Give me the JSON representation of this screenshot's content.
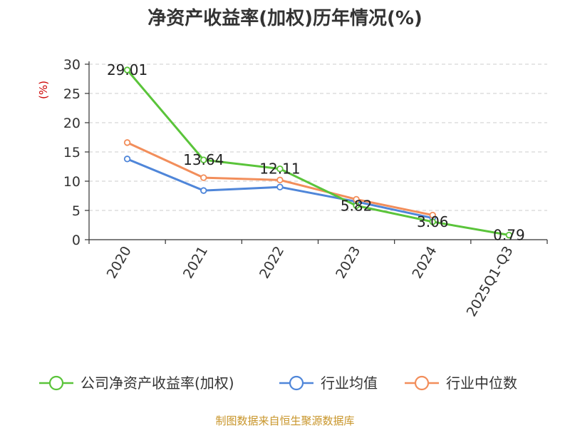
{
  "chart_data": {
    "type": "line",
    "title": "净资产收益率(加权)历年情况(%)",
    "ylabel": "(%)",
    "xlabel": "",
    "categories": [
      "2020",
      "2021",
      "2022",
      "2023",
      "2024",
      "2025Q1-Q3"
    ],
    "ylim": [
      0,
      30
    ],
    "yticks": [
      0,
      5,
      10,
      15,
      20,
      25,
      30
    ],
    "grid": true,
    "legend_position": "bottom",
    "series": [
      {
        "name": "公司净资产收益率(加权)",
        "color": "#5ac43a",
        "values": [
          29.01,
          13.64,
          12.11,
          5.82,
          3.06,
          0.79
        ],
        "labels": [
          "29.01",
          "13.64",
          "12.11",
          "5.82",
          "3.06",
          "0.79"
        ]
      },
      {
        "name": "行业均值",
        "color": "#4f86d9",
        "values": [
          13.8,
          8.4,
          9.0,
          6.5,
          3.7,
          null
        ]
      },
      {
        "name": "行业中位数",
        "color": "#f28e5b",
        "values": [
          16.6,
          10.6,
          10.2,
          6.9,
          4.2,
          null
        ]
      }
    ]
  },
  "footer": {
    "source": "制图数据来自恒生聚源数据库"
  }
}
